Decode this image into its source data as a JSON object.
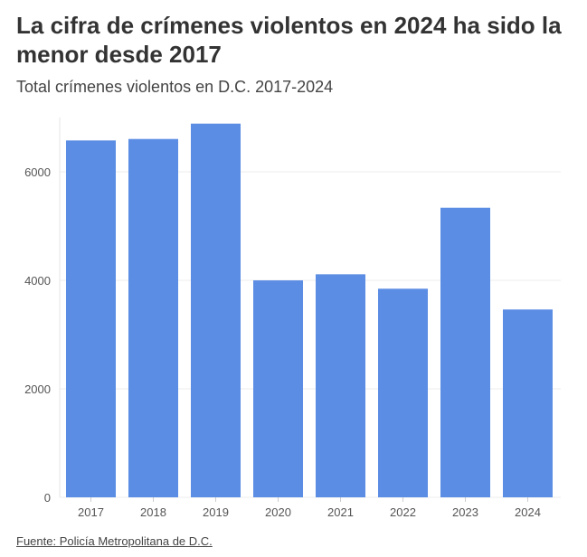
{
  "chart_data": {
    "type": "bar",
    "title": "La cifra de crímenes violentos en 2024 ha sido la menor desde 2017",
    "subtitle": "Total crímenes violentos en D.C. 2017-2024",
    "categories": [
      "2017",
      "2018",
      "2019",
      "2020",
      "2021",
      "2022",
      "2023",
      "2024"
    ],
    "values": [
      6578,
      6605,
      6888,
      3999,
      4111,
      3845,
      5338,
      3462
    ],
    "ylim": [
      0,
      7000
    ],
    "yticks": [
      0,
      2000,
      4000,
      6000
    ],
    "grid": true,
    "bar_color": "#5b8de4",
    "source": "Fuente: Policía Metropolitana de D.C."
  }
}
